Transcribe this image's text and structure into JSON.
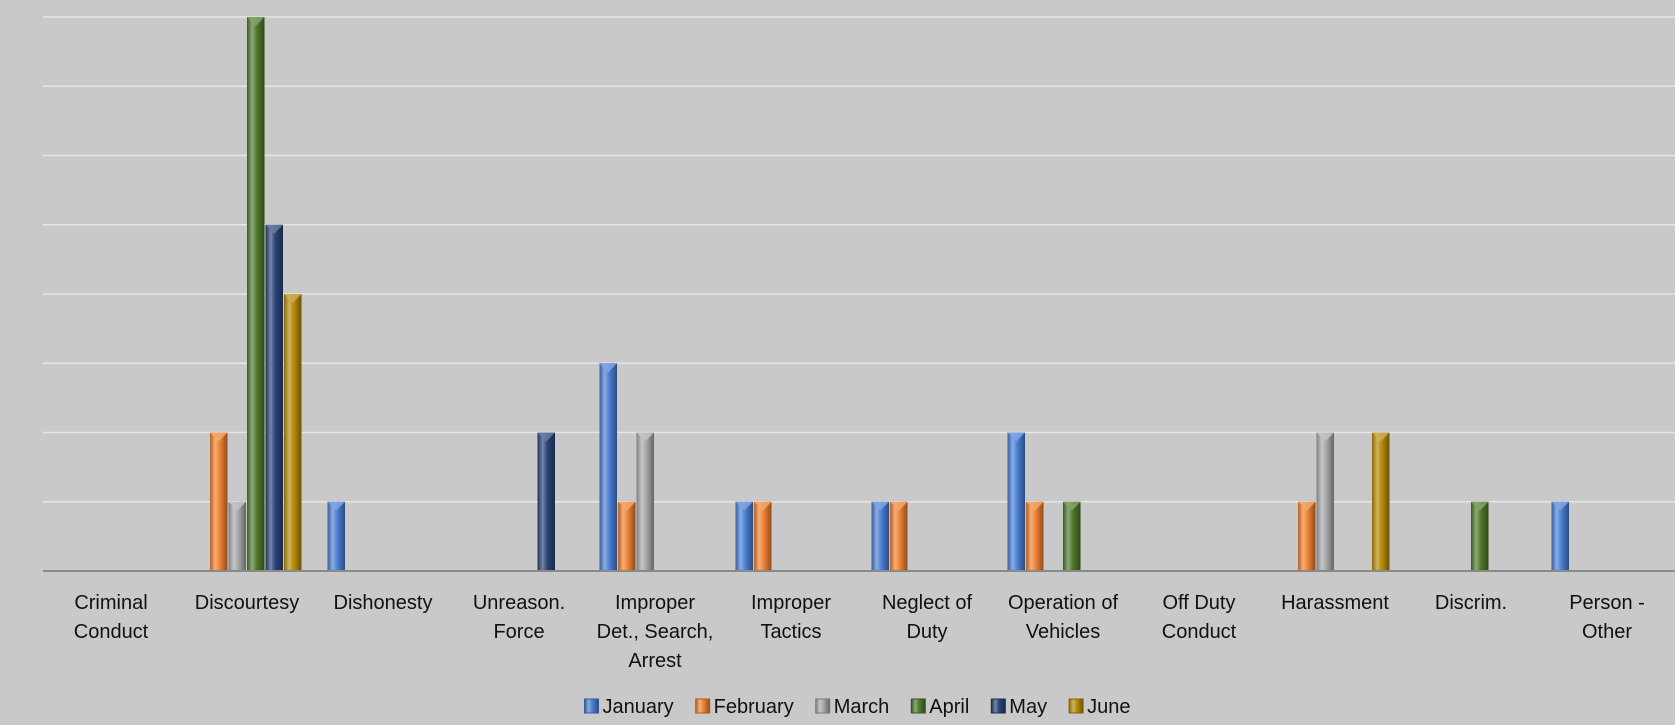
{
  "chart_data": {
    "type": "bar",
    "title": "",
    "xlabel": "",
    "ylabel": "",
    "ylim": [
      0,
      8
    ],
    "yticks": [
      "0",
      "1",
      "2",
      "3",
      "4",
      "5",
      "6",
      "7",
      "8"
    ],
    "grid": true,
    "legend_position": "bottom-center",
    "categories": [
      [
        "Criminal",
        "Conduct"
      ],
      [
        "Discourtesy"
      ],
      [
        "Dishonesty"
      ],
      [
        "Unreason.",
        "Force"
      ],
      [
        "Improper",
        "Det., Search,",
        "Arrest"
      ],
      [
        "Improper",
        "Tactics"
      ],
      [
        "Neglect of",
        "Duty"
      ],
      [
        "Operation of",
        "Vehicles"
      ],
      [
        "Off Duty",
        "Conduct"
      ],
      [
        "Harassment"
      ],
      [
        "Discrim."
      ],
      [
        "Person -",
        "Other"
      ]
    ],
    "series": [
      {
        "name": "January",
        "color": "#4a7fd4",
        "values": [
          0,
          0,
          1,
          0,
          3,
          1,
          1,
          2,
          0,
          0,
          0,
          1
        ]
      },
      {
        "name": "February",
        "color": "#ee8233",
        "values": [
          0,
          2,
          0,
          0,
          1,
          1,
          1,
          1,
          0,
          1,
          0,
          0
        ]
      },
      {
        "name": "March",
        "color": "#a9a9a9",
        "values": [
          0,
          1,
          0,
          0,
          2,
          0,
          0,
          0,
          0,
          2,
          0,
          0
        ]
      },
      {
        "name": "April",
        "color": "#4e7a2c",
        "values": [
          0,
          8,
          0,
          0,
          0,
          0,
          0,
          1,
          0,
          0,
          1,
          0
        ]
      },
      {
        "name": "May",
        "color": "#2a4478",
        "values": [
          0,
          5,
          0,
          2,
          0,
          0,
          0,
          0,
          0,
          0,
          0,
          0
        ]
      },
      {
        "name": "June",
        "color": "#b88a0a",
        "values": [
          0,
          4,
          0,
          0,
          0,
          0,
          0,
          0,
          0,
          2,
          0,
          0
        ]
      }
    ]
  }
}
